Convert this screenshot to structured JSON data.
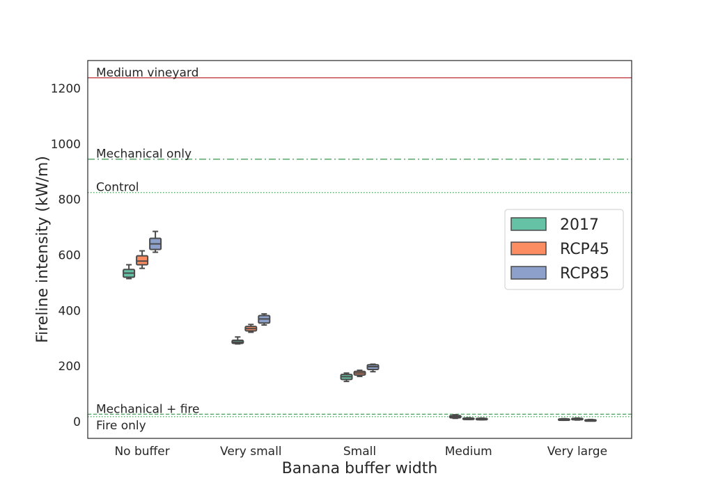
{
  "chart_data": {
    "type": "box",
    "xlabel": "Banana buffer width",
    "ylabel": "Fireline intensity (kW/m)",
    "categories": [
      "No buffer",
      "Very small",
      "Small",
      "Medium",
      "Very large"
    ],
    "ylim": [
      -60,
      1300
    ],
    "yticks": [
      0,
      200,
      400,
      600,
      800,
      1000,
      1200
    ],
    "grid": false,
    "legend_position": "right",
    "series": [
      {
        "name": "2017",
        "color": "#66c2a5",
        "boxes": [
          {
            "whislo": 515,
            "q1": 520,
            "med": 535,
            "q3": 548,
            "whishi": 565
          },
          {
            "whislo": 280,
            "q1": 282,
            "med": 287,
            "q3": 293,
            "whishi": 305
          },
          {
            "whislo": 145,
            "q1": 152,
            "med": 162,
            "q3": 170,
            "whishi": 175
          },
          {
            "whislo": 12,
            "q1": 14,
            "med": 18,
            "q3": 22,
            "whishi": 25
          },
          {
            "whislo": 5,
            "q1": 6,
            "med": 8,
            "q3": 10,
            "whishi": 11
          }
        ]
      },
      {
        "name": "RCP45",
        "color": "#fc8d62",
        "boxes": [
          {
            "whislo": 552,
            "q1": 565,
            "med": 578,
            "q3": 597,
            "whishi": 615
          },
          {
            "whislo": 322,
            "q1": 327,
            "med": 335,
            "q3": 343,
            "whishi": 350
          },
          {
            "whislo": 163,
            "q1": 168,
            "med": 175,
            "q3": 181,
            "whishi": 185
          },
          {
            "whislo": 8,
            "q1": 9,
            "med": 11,
            "q3": 13,
            "whishi": 14
          },
          {
            "whislo": 6,
            "q1": 8,
            "med": 10,
            "q3": 12,
            "whishi": 13
          }
        ]
      },
      {
        "name": "RCP85",
        "color": "#8da0cb",
        "boxes": [
          {
            "whislo": 610,
            "q1": 620,
            "med": 640,
            "q3": 660,
            "whishi": 685
          },
          {
            "whislo": 348,
            "q1": 355,
            "med": 370,
            "q3": 382,
            "whishi": 388
          },
          {
            "whislo": 180,
            "q1": 188,
            "med": 198,
            "q3": 205,
            "whishi": 207
          },
          {
            "whislo": 7,
            "q1": 8,
            "med": 10,
            "q3": 12,
            "whishi": 13
          },
          {
            "whislo": 4,
            "q1": 5,
            "med": 6,
            "q3": 7,
            "whishi": 8
          }
        ]
      }
    ],
    "reference_lines": [
      {
        "label": "Medium vineyard",
        "y": 1238,
        "color": "#c44e52",
        "style": "solid"
      },
      {
        "label": "Mechanical only",
        "y": 945,
        "color": "#55a868",
        "style": "dashdot"
      },
      {
        "label": "Control",
        "y": 825,
        "color": "#55a868",
        "style": "dotted"
      },
      {
        "label": "Mechanical + fire",
        "y": 27,
        "color": "#55a868",
        "style": "dashed"
      },
      {
        "label": "Fire only",
        "y": 18,
        "color": "#55a868",
        "style": "dotted"
      }
    ]
  }
}
